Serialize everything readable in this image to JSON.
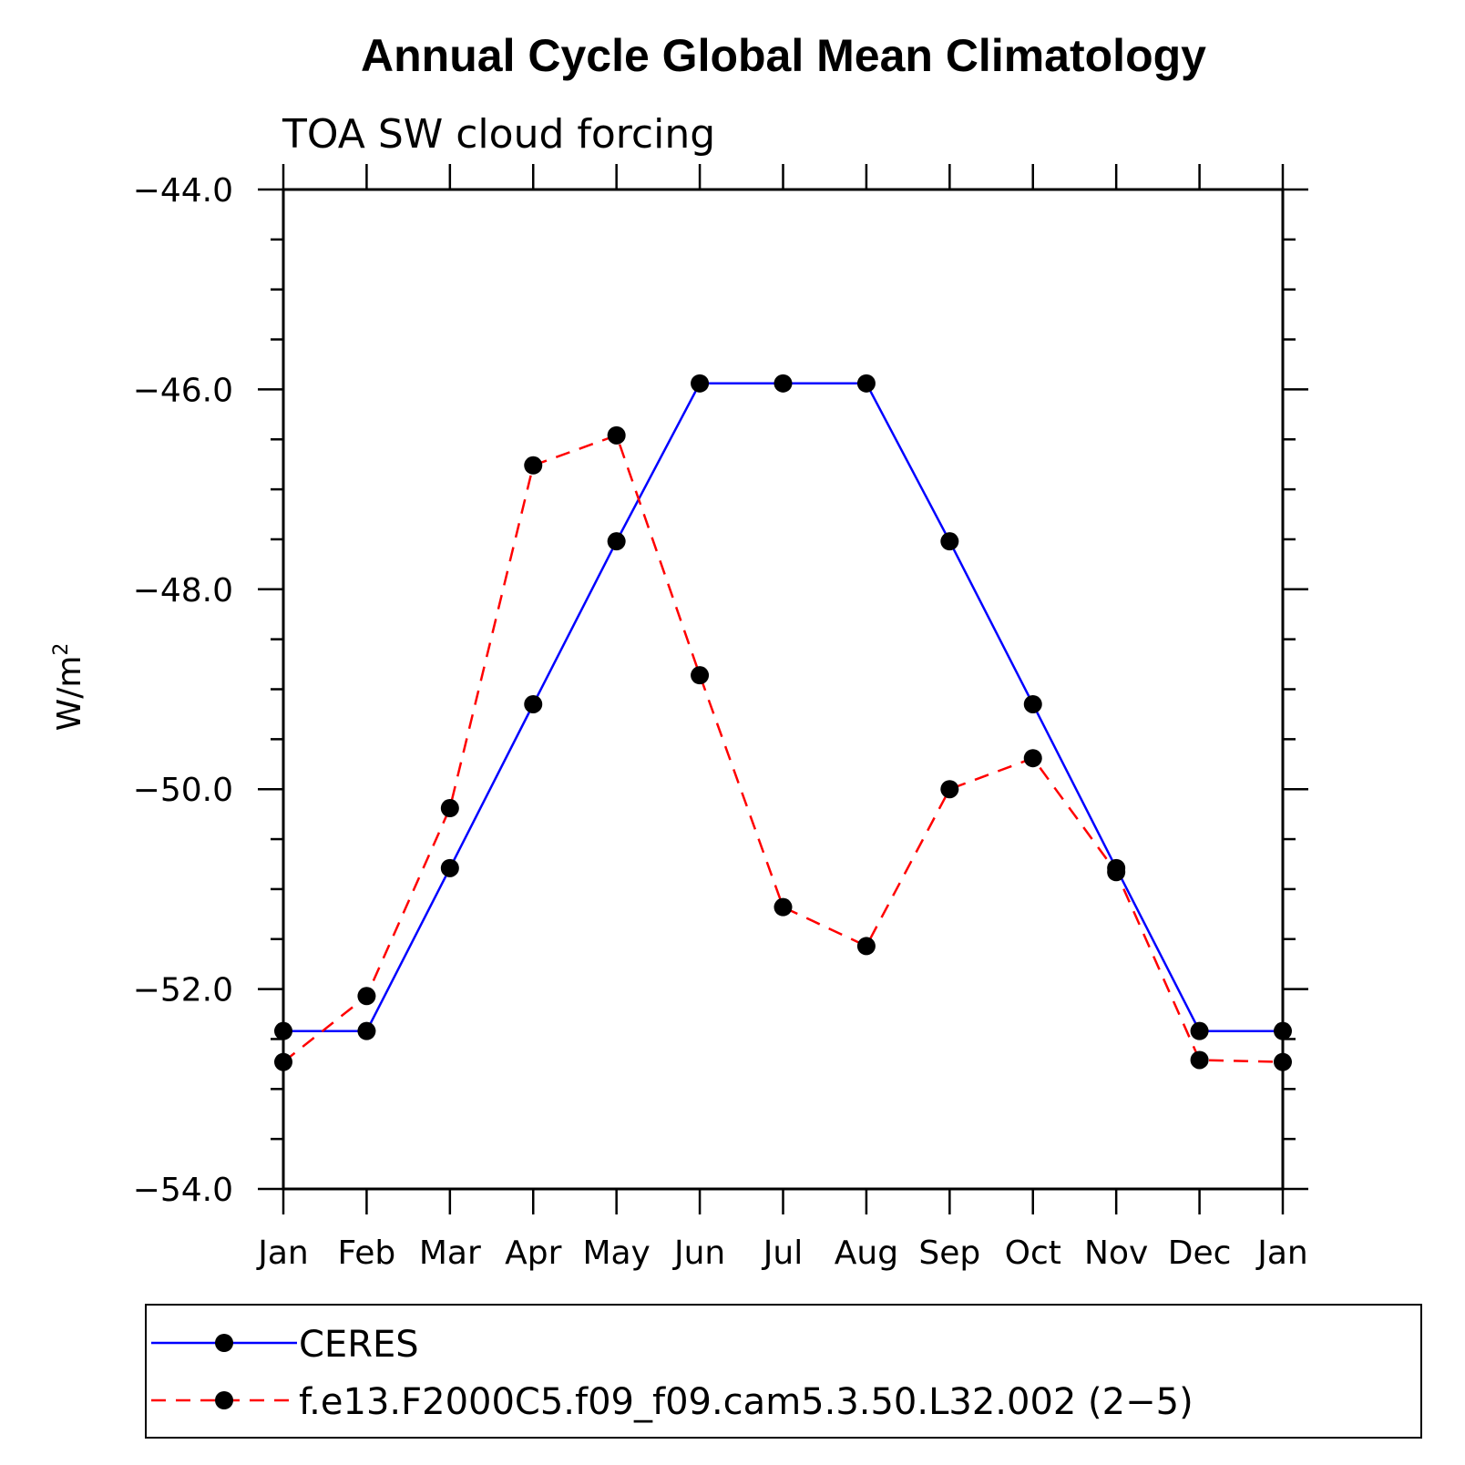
{
  "chart_data": {
    "type": "line",
    "title": "Annual Cycle Global Mean Climatology",
    "subtitle": "TOA SW cloud forcing",
    "ylabel": "W/m",
    "ylabel_superscript": "2",
    "categories": [
      "Jan",
      "Feb",
      "Mar",
      "Apr",
      "May",
      "Jun",
      "Jul",
      "Aug",
      "Sep",
      "Oct",
      "Nov",
      "Dec",
      "Jan"
    ],
    "ylim": [
      -54.0,
      -44.0
    ],
    "yticks": [
      -54.0,
      -52.0,
      -50.0,
      -48.0,
      -46.0,
      -44.0
    ],
    "ytick_labels": [
      "−54.0",
      "−52.0",
      "−50.0",
      "−48.0",
      "−46.0",
      "−44.0"
    ],
    "grid": false,
    "legend_position": "bottom",
    "series": [
      {
        "name": "CERES",
        "color": "#0000ff",
        "style": "solid",
        "marker": "filled-circle",
        "values": [
          -52.42,
          -52.42,
          -50.79,
          -49.15,
          -47.52,
          -45.94,
          -45.94,
          -45.94,
          -47.52,
          -49.15,
          -50.79,
          -52.42,
          -52.42
        ]
      },
      {
        "name": "f.e13.F2000C5.f09_f09.cam5.3.50.L32.002 (2−5)",
        "color": "#ff0000",
        "style": "dashed",
        "marker": "filled-circle",
        "values": [
          -52.73,
          -52.07,
          -50.19,
          -46.76,
          -46.46,
          -48.86,
          -51.18,
          -51.57,
          -50.0,
          -49.69,
          -50.83,
          -52.71,
          -52.73
        ]
      }
    ]
  }
}
